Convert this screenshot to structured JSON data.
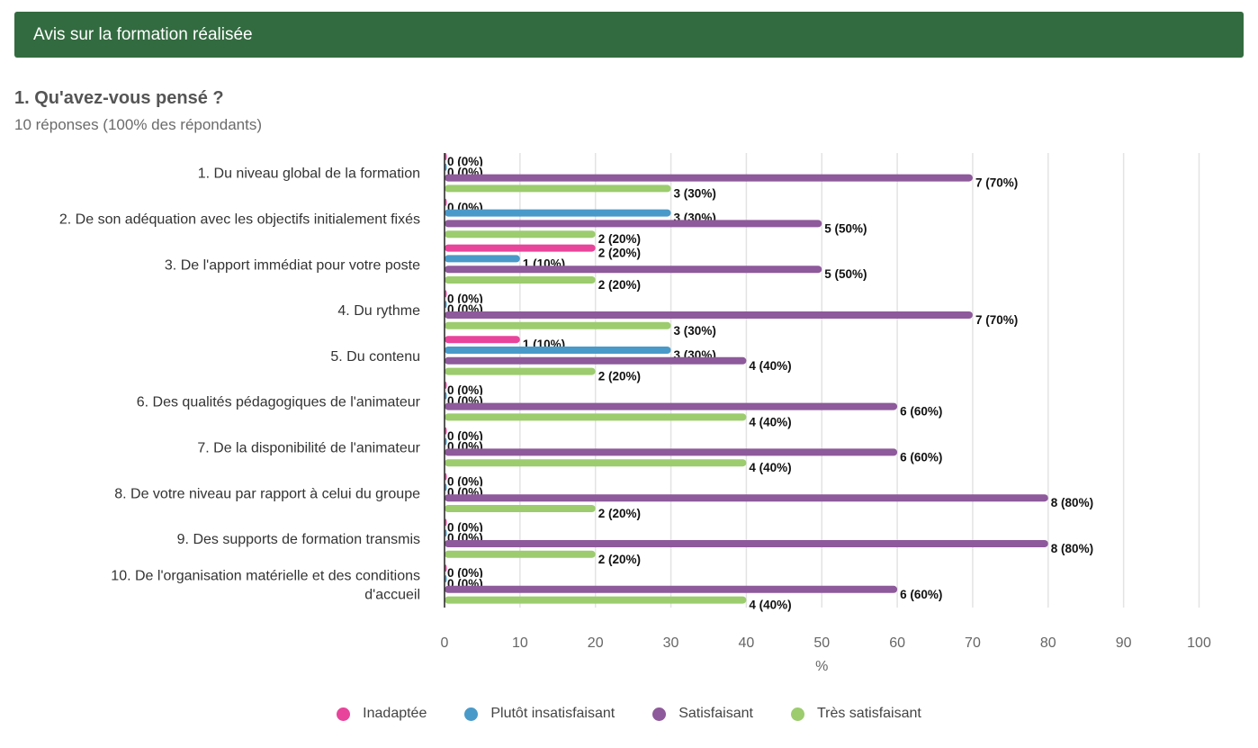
{
  "section": {
    "title": "Avis sur la formation réalisée"
  },
  "question": {
    "title": "1. Qu'avez-vous pensé ?",
    "subtitle": "10 réponses (100% des répondants)"
  },
  "chart_data": {
    "type": "bar",
    "orientation": "horizontal",
    "xlabel": "%",
    "xlim": [
      0,
      100
    ],
    "xticks": [
      "0",
      "10",
      "20",
      "30",
      "40",
      "50",
      "60",
      "70",
      "80",
      "90",
      "100"
    ],
    "grid": true,
    "legend_position": "bottom",
    "categories": [
      [
        "1. Du niveau global de la formation"
      ],
      [
        "2. De son adéquation avec les objectifs initialement fixés"
      ],
      [
        "3. De l'apport immédiat pour votre poste"
      ],
      [
        "4. Du rythme"
      ],
      [
        "5. Du contenu"
      ],
      [
        "6. Des qualités pédagogiques de l'animateur"
      ],
      [
        "7. De la disponibilité de l'animateur"
      ],
      [
        "8. De votre niveau par rapport à celui du groupe"
      ],
      [
        "9. Des supports de formation transmis"
      ],
      [
        "10. De l'organisation matérielle et des conditions",
        "d'accueil"
      ]
    ],
    "series": [
      {
        "name": "Inadaptée",
        "color": "#e8449b",
        "values": [
          0,
          0,
          20,
          0,
          10,
          0,
          0,
          0,
          0,
          0
        ],
        "labels": [
          "0 (0%)",
          "0 (0%)",
          "2 (20%)",
          "0 (0%)",
          "1 (10%)",
          "0 (0%)",
          "0 (0%)",
          "0 (0%)",
          "0 (0%)",
          "0 (0%)"
        ]
      },
      {
        "name": "Plutôt insatisfaisant",
        "color": "#4a9ac9",
        "values": [
          0,
          30,
          10,
          0,
          30,
          0,
          0,
          0,
          0,
          0
        ],
        "labels": [
          "0 (0%)",
          "3 (30%)",
          "1 (10%)",
          "0 (0%)",
          "3 (30%)",
          "0 (0%)",
          "0 (0%)",
          "0 (0%)",
          "0 (0%)",
          "0 (0%)"
        ]
      },
      {
        "name": "Satisfaisant",
        "color": "#8e5a9b",
        "values": [
          70,
          50,
          50,
          70,
          40,
          60,
          60,
          80,
          80,
          60
        ],
        "labels": [
          "7 (70%)",
          "5 (50%)",
          "5 (50%)",
          "7 (70%)",
          "4 (40%)",
          "6 (60%)",
          "6 (60%)",
          "8 (80%)",
          "8 (80%)",
          "6 (60%)"
        ]
      },
      {
        "name": "Très satisfaisant",
        "color": "#9ccc6e",
        "values": [
          30,
          20,
          20,
          30,
          20,
          40,
          40,
          20,
          20,
          40
        ],
        "labels": [
          "3 (30%)",
          "2 (20%)",
          "2 (20%)",
          "3 (30%)",
          "2 (20%)",
          "4 (40%)",
          "4 (40%)",
          "2 (20%)",
          "2 (20%)",
          "4 (40%)"
        ]
      }
    ]
  }
}
